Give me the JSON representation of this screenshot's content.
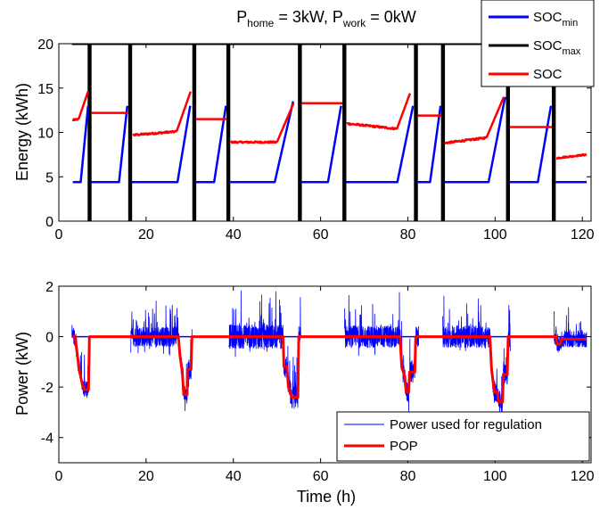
{
  "chart_data": [
    {
      "type": "line",
      "title_parts": [
        "P",
        "home",
        " = 3kW, P",
        "work",
        " = 0kW"
      ],
      "xlabel": "",
      "ylabel": "Energy (kWh)",
      "xlim": [
        0,
        122
      ],
      "ylim": [
        0,
        20
      ],
      "xticks": [
        0,
        20,
        40,
        60,
        80,
        100,
        120
      ],
      "yticks": [
        0,
        5,
        10,
        15,
        20
      ],
      "grid": false,
      "legend_position": "top-right",
      "legend": [
        {
          "base": "SOC",
          "sub": "min",
          "color": "#0000ff"
        },
        {
          "base": "SOC",
          "sub": "max",
          "color": "#000000"
        },
        {
          "base": "SOC",
          "sub": "",
          "color": "#ff0000"
        }
      ],
      "soc_max": 20,
      "soc_min_floor": 4.4,
      "unplug_bars": [
        [
          6.6,
          7.5
        ],
        [
          15.9,
          16.8
        ],
        [
          30.6,
          31.5
        ],
        [
          38.4,
          39.3
        ],
        [
          54.8,
          55.7
        ],
        [
          65.0,
          65.9
        ],
        [
          81.4,
          82.3
        ],
        [
          87.6,
          88.5
        ],
        [
          102.5,
          103.4
        ],
        [
          113.0,
          113.9
        ]
      ],
      "series": [
        {
          "name": "SOC_min",
          "color": "#0000ff",
          "segments": [
            [
              [
                3.2,
                4.4
              ],
              [
                5.0,
                4.4
              ],
              [
                6.7,
                13.0
              ]
            ],
            [
              [
                7.4,
                4.4
              ],
              [
                13.8,
                4.4
              ],
              [
                15.7,
                13.0
              ]
            ],
            [
              [
                16.7,
                4.4
              ],
              [
                27.2,
                4.4
              ],
              [
                30.1,
                13.0
              ]
            ],
            [
              [
                31.3,
                4.4
              ],
              [
                35.6,
                4.4
              ],
              [
                38.3,
                13.0
              ]
            ],
            [
              [
                39.3,
                4.4
              ],
              [
                49.5,
                4.4
              ],
              [
                53.7,
                13.5
              ]
            ],
            [
              [
                55.6,
                4.4
              ],
              [
                61.7,
                4.4
              ],
              [
                64.7,
                13.0
              ]
            ],
            [
              [
                65.8,
                4.4
              ],
              [
                77.6,
                4.4
              ],
              [
                81.2,
                13.0
              ]
            ],
            [
              [
                82.2,
                4.4
              ],
              [
                85.1,
                4.4
              ],
              [
                87.5,
                13.0
              ]
            ],
            [
              [
                88.4,
                4.4
              ],
              [
                98.5,
                4.4
              ],
              [
                102.3,
                14.0
              ]
            ],
            [
              [
                103.3,
                4.4
              ],
              [
                109.8,
                4.4
              ],
              [
                112.8,
                13.0
              ]
            ],
            [
              [
                113.9,
                4.4
              ],
              [
                121.0,
                4.4
              ]
            ]
          ]
        },
        {
          "name": "SOC",
          "color": "#ff0000",
          "noisy": [
            {
              "x": [
                3.2,
                4.6
              ],
              "y": [
                11.4,
                11.5
              ],
              "amp": 0.15
            },
            {
              "x": [
                17.0,
                27.0
              ],
              "y": [
                9.7,
                10.1
              ],
              "amp": 0.2
            },
            {
              "x": [
                39.5,
                50.0
              ],
              "y": [
                8.9,
                8.9
              ],
              "amp": 0.18
            },
            {
              "x": [
                66.0,
                77.5
              ],
              "y": [
                11.0,
                10.4
              ],
              "amp": 0.2
            },
            {
              "x": [
                88.5,
                98.0
              ],
              "y": [
                8.8,
                9.4
              ],
              "amp": 0.2
            },
            {
              "x": [
                114.0,
                121.0
              ],
              "y": [
                7.1,
                7.5
              ],
              "amp": 0.15
            }
          ],
          "ramps": [
            [
              [
                4.6,
                11.6
              ],
              [
                6.7,
                14.6
              ]
            ],
            [
              [
                27.0,
                10.1
              ],
              [
                30.2,
                14.6
              ]
            ],
            [
              [
                50.0,
                8.9
              ],
              [
                53.8,
                13.3
              ]
            ],
            [
              [
                77.5,
                10.4
              ],
              [
                80.5,
                14.4
              ]
            ],
            [
              [
                98.0,
                9.4
              ],
              [
                102.0,
                14.0
              ]
            ]
          ],
          "flats": [
            [
              7.5,
              15.9,
              12.2
            ],
            [
              31.5,
              38.4,
              11.5
            ],
            [
              55.7,
              65.0,
              13.3
            ],
            [
              82.3,
              87.6,
              11.9
            ],
            [
              103.4,
              113.0,
              10.6
            ]
          ]
        }
      ]
    },
    {
      "type": "line",
      "xlabel": "Time (h)",
      "ylabel": "Power (kW)",
      "xlim": [
        0,
        122
      ],
      "ylim": [
        -5,
        2
      ],
      "xticks": [
        0,
        20,
        40,
        60,
        80,
        100,
        120
      ],
      "yticks": [
        -4,
        -2,
        0,
        2
      ],
      "grid": false,
      "legend_position": "bottom-right",
      "legend": [
        {
          "label": "Power used for regulation",
          "color": "#0000ff"
        },
        {
          "label": "POP",
          "color": "#ff0000"
        }
      ],
      "series": [
        {
          "name": "Power used for regulation",
          "color": "#0000ff",
          "noisy_windows": [
            {
              "x": [
                3.0,
                7.0
              ],
              "amp": 0.9
            },
            {
              "x": [
                16.5,
                30.5
              ],
              "amp": 1.0
            },
            {
              "x": [
                39.0,
                55.5
              ],
              "amp": 1.2
            },
            {
              "x": [
                65.5,
                82.5
              ],
              "amp": 1.1
            },
            {
              "x": [
                88.0,
                103.5
              ],
              "amp": 1.1
            },
            {
              "x": [
                113.5,
                121.0
              ],
              "amp": 0.8
            }
          ]
        },
        {
          "name": "POP",
          "color": "#ff0000",
          "points": [
            [
              3.0,
              0
            ],
            [
              3.8,
              0
            ],
            [
              4.0,
              -0.4
            ],
            [
              4.3,
              -0.8
            ],
            [
              4.6,
              -1.2
            ],
            [
              5.0,
              -1.6
            ],
            [
              5.4,
              -1.9
            ],
            [
              5.8,
              -2.1
            ],
            [
              6.8,
              -2.1
            ],
            [
              7.0,
              0
            ],
            [
              27.4,
              0
            ],
            [
              27.8,
              -0.8
            ],
            [
              28.3,
              -1.4
            ],
            [
              28.6,
              -2.3
            ],
            [
              29.4,
              -2.3
            ],
            [
              29.5,
              -1.3
            ],
            [
              30.3,
              -1.3
            ],
            [
              30.5,
              0
            ],
            [
              51.4,
              0
            ],
            [
              51.6,
              -1.2
            ],
            [
              52.3,
              -1.2
            ],
            [
              52.6,
              -2.0
            ],
            [
              53.4,
              -2.4
            ],
            [
              54.8,
              -2.4
            ],
            [
              55.0,
              0
            ],
            [
              78.2,
              0
            ],
            [
              78.6,
              -1.2
            ],
            [
              79.3,
              -1.6
            ],
            [
              79.6,
              -2.2
            ],
            [
              80.2,
              -2.2
            ],
            [
              80.4,
              -1.4
            ],
            [
              81.6,
              -1.4
            ],
            [
              81.8,
              0
            ],
            [
              98.8,
              0
            ],
            [
              99.2,
              -1.3
            ],
            [
              99.8,
              -2.2
            ],
            [
              100.5,
              -2.2
            ],
            [
              100.8,
              -2.6
            ],
            [
              101.7,
              -2.6
            ],
            [
              101.9,
              -1.5
            ],
            [
              102.8,
              -1.5
            ],
            [
              103.0,
              0
            ],
            [
              113.0,
              0
            ],
            [
              114.0,
              0
            ],
            [
              114.1,
              -0.3
            ],
            [
              115.0,
              -0.3
            ],
            [
              115.2,
              -0.1
            ],
            [
              121.0,
              -0.1
            ]
          ]
        }
      ]
    }
  ]
}
